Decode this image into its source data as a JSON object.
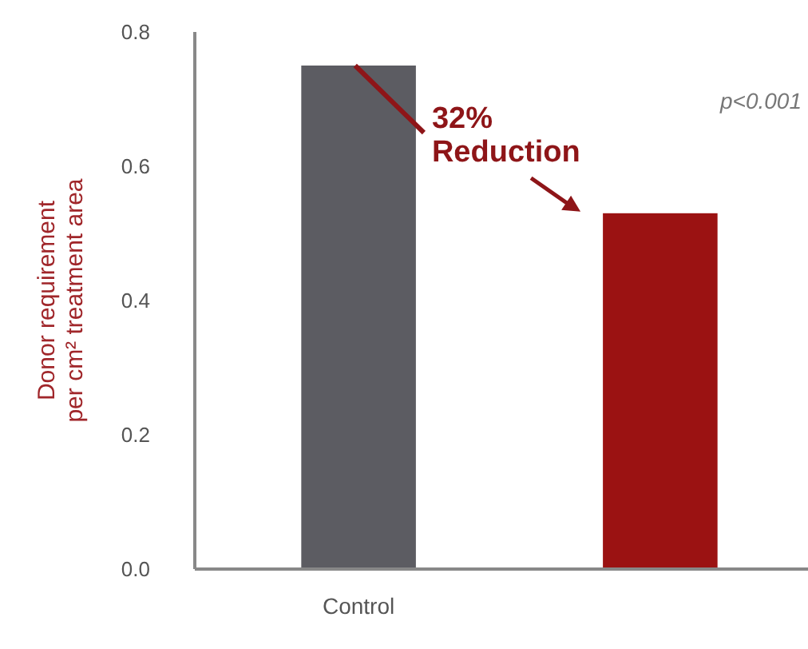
{
  "chart_data": {
    "type": "bar",
    "ylabel": "Donor requirement\nper cm² treatment area",
    "categories": [
      "Control",
      null
    ],
    "values": [
      0.75,
      0.53
    ],
    "colors": [
      "#5c5c62",
      "#9b1212"
    ],
    "ylim": [
      0,
      0.8
    ],
    "yticks": [
      {
        "value": 0,
        "label": "0.0"
      },
      {
        "value": 0.2,
        "label": "0.2"
      },
      {
        "value": 0.4,
        "label": "0.4"
      },
      {
        "value": 0.6,
        "label": "0.6"
      },
      {
        "value": 0.8,
        "label": "0.8"
      }
    ],
    "grid": false,
    "annotations": [
      "32% Reduction",
      "p<0.001"
    ]
  }
}
